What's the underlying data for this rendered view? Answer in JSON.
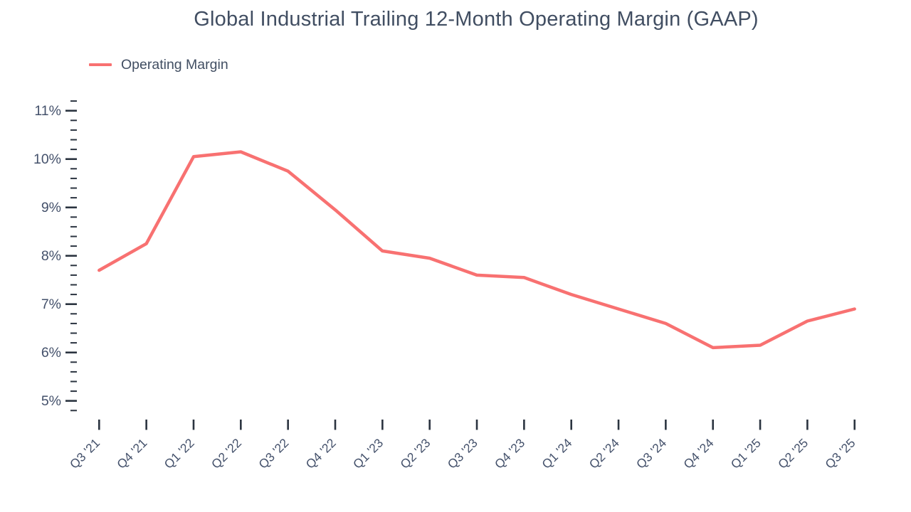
{
  "title": "Global Industrial Trailing 12-Month Operating Margin (GAAP)",
  "legend": {
    "label": "Operating Margin"
  },
  "colors": {
    "line": "#f87171",
    "title_text": "#414e62",
    "axis_text": "#44516b",
    "tick": "#2b3440",
    "background": "#ffffff"
  },
  "chart_data": {
    "type": "line",
    "title": "Global Industrial Trailing 12-Month Operating Margin (GAAP)",
    "legend_entries": [
      "Operating Margin"
    ],
    "legend_position": "top-left",
    "grid": false,
    "unit": "%",
    "categories": [
      "Q3 '21",
      "Q4 '21",
      "Q1 '22",
      "Q2 '22",
      "Q3 '22",
      "Q4 '22",
      "Q1 '23",
      "Q2 '23",
      "Q3 '23",
      "Q4 '23",
      "Q1 '24",
      "Q2 '24",
      "Q3 '24",
      "Q4 '24",
      "Q1 '25",
      "Q2 '25",
      "Q3 '25"
    ],
    "series": [
      {
        "name": "Operating Margin",
        "values": [
          7.7,
          8.25,
          10.05,
          10.15,
          9.75,
          8.95,
          8.1,
          7.95,
          7.6,
          7.55,
          7.2,
          6.9,
          6.6,
          6.1,
          6.15,
          6.65,
          6.9
        ]
      }
    ],
    "y_axis": [
      {
        "value": 11,
        "label": "11%"
      },
      {
        "value": 10,
        "label": "10%"
      },
      {
        "value": 9,
        "label": "9%"
      },
      {
        "value": 8,
        "label": "8%"
      },
      {
        "value": 7,
        "label": "7%"
      },
      {
        "value": 6,
        "label": "6%"
      },
      {
        "value": 5,
        "label": "5%"
      }
    ],
    "ylim": [
      4.8,
      11.2
    ],
    "minor_tick_step": 0.2
  }
}
